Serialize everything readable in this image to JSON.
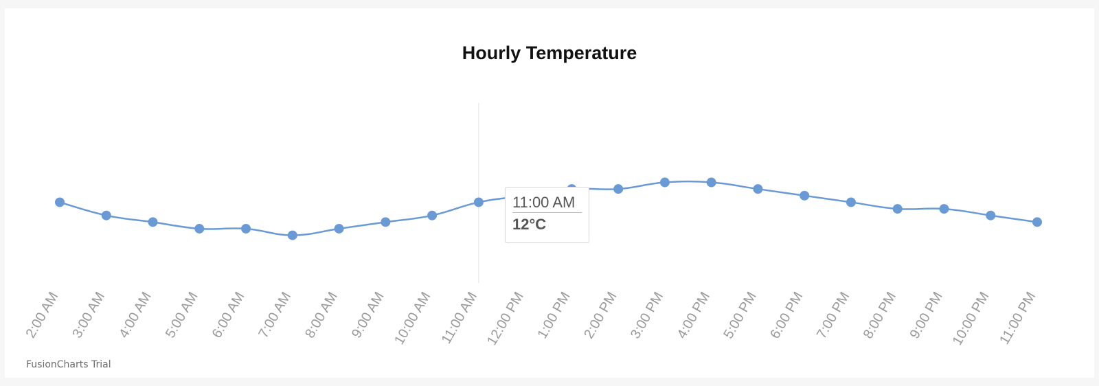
{
  "chart_data": {
    "type": "line",
    "title": "Hourly Temperature",
    "xlabel": "",
    "ylabel": "",
    "categories": [
      "2:00 AM",
      "3:00 AM",
      "4:00 AM",
      "5:00 AM",
      "6:00 AM",
      "7:00 AM",
      "8:00 AM",
      "9:00 AM",
      "10:00 AM",
      "11:00 AM",
      "12:00 PM",
      "1:00 PM",
      "2:00 PM",
      "3:00 PM",
      "4:00 PM",
      "5:00 PM",
      "6:00 PM",
      "7:00 PM",
      "8:00 PM",
      "9:00 PM",
      "10:00 PM",
      "11:00 PM"
    ],
    "series": [
      {
        "values": [
          12,
          10,
          9,
          8,
          8,
          7,
          8,
          9,
          10,
          12,
          13,
          14,
          14,
          15,
          15,
          14,
          13,
          12,
          11,
          11,
          10,
          9
        ]
      }
    ],
    "ylim": [
      0,
      27
    ],
    "grid": false,
    "legend": "none",
    "colors": {
      "line": "#6a9ad6",
      "marker": "#6a9ad6",
      "hover_line": "#e3e3e3"
    },
    "tooltip": {
      "category": "11:00 AM",
      "value_label": "12°C"
    }
  },
  "watermark": "FusionCharts Trial"
}
